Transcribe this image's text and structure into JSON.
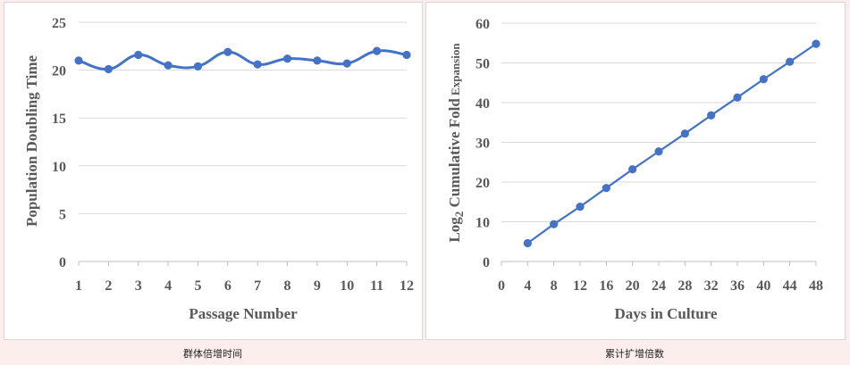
{
  "chart_data": [
    {
      "type": "line",
      "xlabel": "Passage Number",
      "ylabel": "Population Doubling Time",
      "categories": [
        "1",
        "2",
        "3",
        "4",
        "5",
        "6",
        "7",
        "8",
        "9",
        "10",
        "11",
        "12"
      ],
      "x": [
        1,
        2,
        3,
        4,
        5,
        6,
        7,
        8,
        9,
        10,
        11,
        12
      ],
      "values": [
        21.0,
        20.1,
        21.6,
        20.5,
        20.4,
        21.9,
        20.6,
        21.2,
        21.0,
        20.7,
        22.0,
        21.6
      ],
      "ylim": [
        0,
        25
      ],
      "yticks": [
        "0",
        "5",
        "10",
        "15",
        "20",
        "25"
      ],
      "smooth": true,
      "grid": true,
      "color": "#4472C4",
      "caption": "群体倍增时间"
    },
    {
      "type": "line",
      "xlabel": "Days in Culture",
      "ylabel_main": "Log",
      "ylabel_sub": "2",
      "ylabel_rest": " Cumulative Fold",
      "ylabel_tail": " Expansion",
      "x": [
        4,
        8,
        12,
        16,
        20,
        24,
        28,
        32,
        36,
        40,
        44,
        48
      ],
      "values": [
        4.6,
        9.4,
        13.8,
        18.5,
        23.2,
        27.7,
        32.2,
        36.8,
        41.3,
        45.9,
        50.3,
        54.8
      ],
      "xlim": [
        0,
        48
      ],
      "xticks": [
        "0",
        "4",
        "8",
        "12",
        "16",
        "20",
        "24",
        "28",
        "32",
        "36",
        "40",
        "44",
        "48"
      ],
      "ylim": [
        0,
        60
      ],
      "yticks": [
        "0",
        "10",
        "20",
        "30",
        "40",
        "50",
        "60"
      ],
      "grid": true,
      "color": "#4472C4",
      "caption": "累计扩增倍数"
    }
  ]
}
